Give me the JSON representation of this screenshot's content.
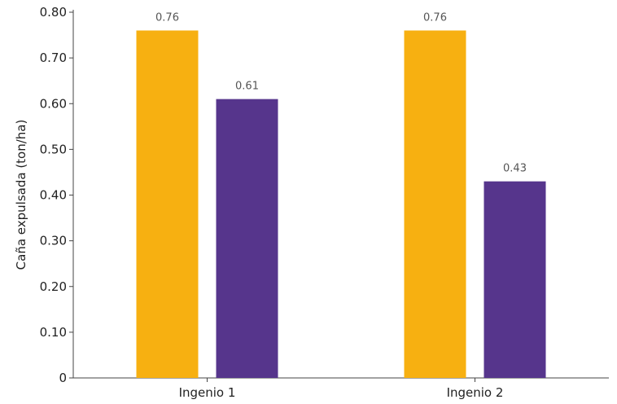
{
  "chart_data": {
    "type": "bar",
    "title": "",
    "xlabel": "",
    "ylabel": "Caña expulsada (ton/ha)",
    "categories": [
      "Ingenio 1",
      "Ingenio 2"
    ],
    "series": [
      {
        "color": "#F7B011",
        "values": [
          0.76,
          0.76
        ],
        "labels": [
          "0.76",
          "0.76"
        ]
      },
      {
        "color": "#56358C",
        "values": [
          0.61,
          0.43
        ],
        "labels": [
          "0.61",
          "0.43"
        ]
      }
    ],
    "ylim": [
      0,
      0.8
    ],
    "yticks": [
      {
        "value": 0,
        "label": "0"
      },
      {
        "value": 0.1,
        "label": "0.10"
      },
      {
        "value": 0.2,
        "label": "0.20"
      },
      {
        "value": 0.3,
        "label": "0.30"
      },
      {
        "value": 0.4,
        "label": "0.40"
      },
      {
        "value": 0.5,
        "label": "0.50"
      },
      {
        "value": 0.6,
        "label": "0.60"
      },
      {
        "value": 0.7,
        "label": "0.70"
      },
      {
        "value": 0.8,
        "label": "0.80"
      }
    ],
    "grid": false,
    "legend": "none"
  }
}
